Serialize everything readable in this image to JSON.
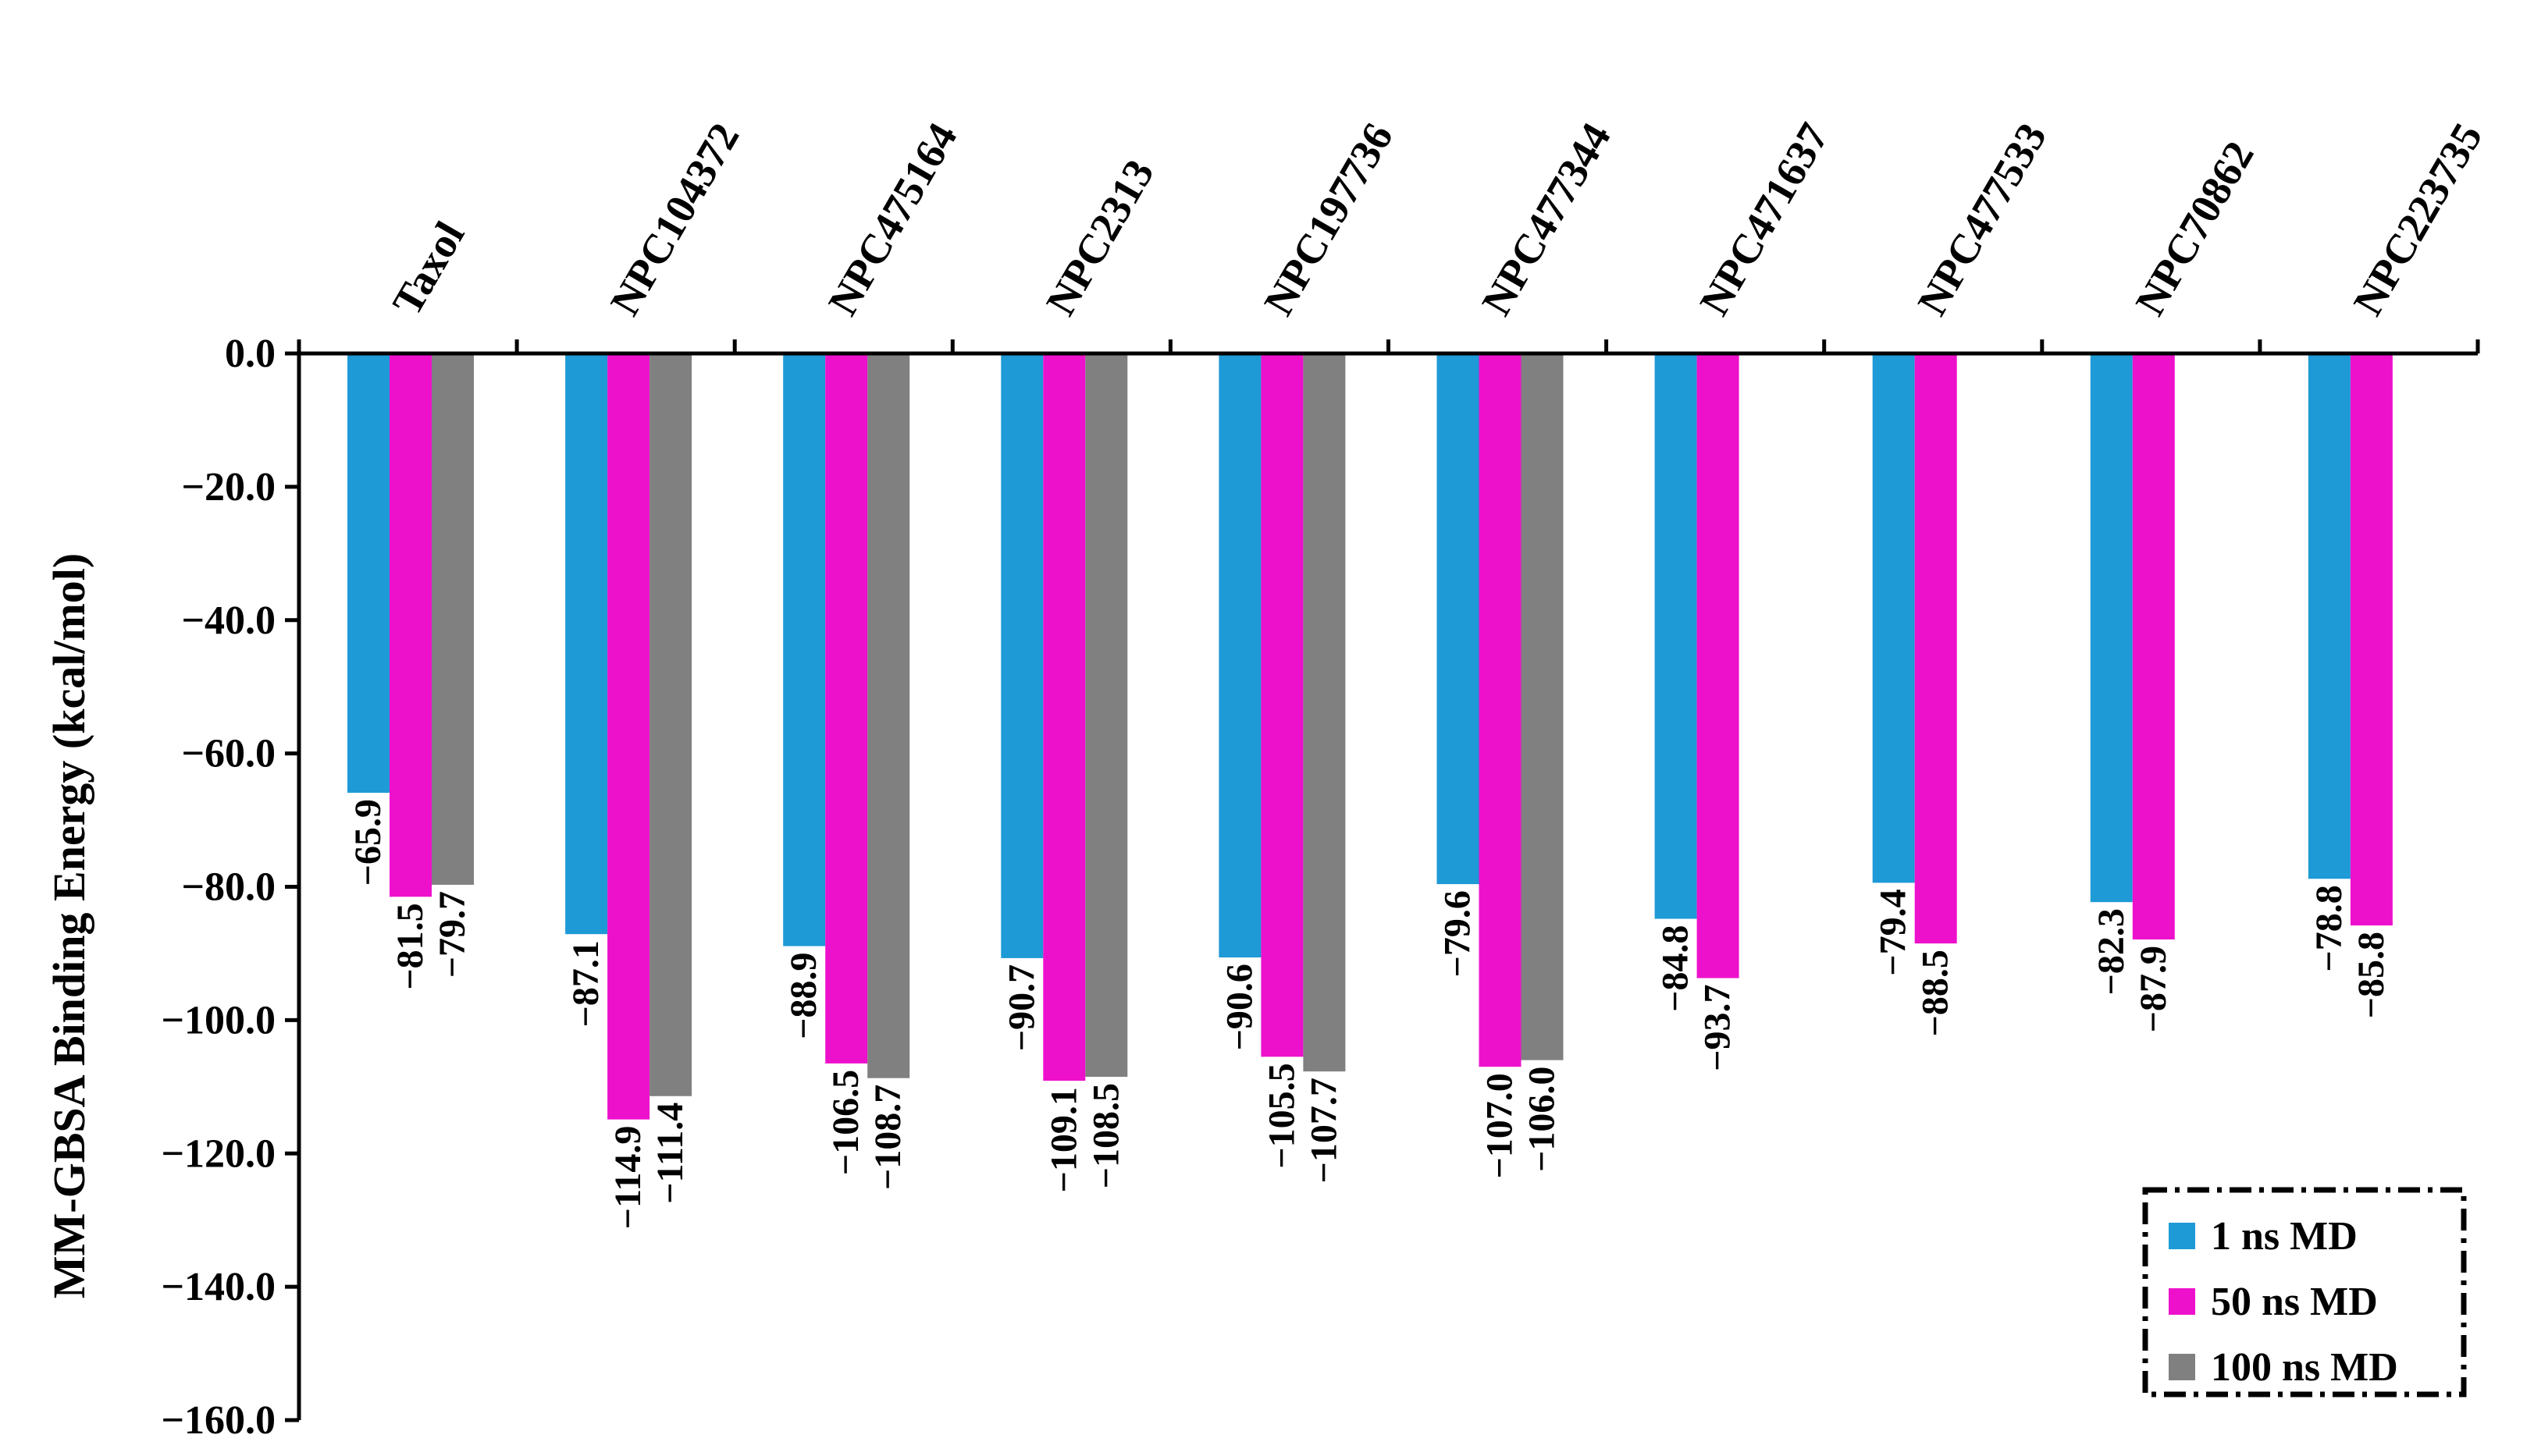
{
  "chart_data": {
    "type": "bar",
    "ylabel": "MM-GBSA Binding Energy (kcal/mol)",
    "xlabel": "",
    "ylim": [
      -160,
      0
    ],
    "yticks": [
      "0.0",
      "−20.0",
      "−40.0",
      "−60.0",
      "−80.0",
      "−100.0",
      "−120.0",
      "−140.0",
      "−160.0"
    ],
    "categories": [
      "Taxol",
      "NPC104372",
      "NPC475164",
      "NPC2313",
      "NPC197736",
      "NPC477344",
      "NPC471637",
      "NPC477533",
      "NPC70862",
      "NPC223735"
    ],
    "series": [
      {
        "name": "1 ns MD",
        "color": "#1e9ad6",
        "values": [
          -65.9,
          -87.1,
          -88.9,
          -90.7,
          -90.6,
          -79.6,
          -84.8,
          -79.4,
          -82.3,
          -78.8
        ],
        "labels": [
          "−65.9",
          "−87.1",
          "−88.9",
          "−90.7",
          "−90.6",
          "−79.6",
          "−84.8",
          "−79.4",
          "−82.3",
          "−78.8"
        ]
      },
      {
        "name": "50 ns MD",
        "color": "#ee11cc",
        "values": [
          -81.5,
          -114.9,
          -106.5,
          -109.1,
          -105.5,
          -107.0,
          -93.7,
          -88.5,
          -87.9,
          -85.8
        ],
        "labels": [
          "−81.5",
          "−114.9",
          "−106.5",
          "−109.1",
          "−105.5",
          "−107.0",
          "−93.7",
          "−88.5",
          "−87.9",
          "−85.8"
        ]
      },
      {
        "name": "100 ns MD",
        "color": "#808080",
        "values": [
          -79.7,
          -111.4,
          -108.7,
          -108.5,
          -107.7,
          -106.0,
          null,
          null,
          null,
          null
        ],
        "labels": [
          "−79.7",
          "−111.4",
          "−108.7",
          "−108.5",
          "−107.7",
          "−106.0",
          null,
          null,
          null,
          null
        ]
      }
    ],
    "legend_position": "bottom-right",
    "grid": false
  }
}
